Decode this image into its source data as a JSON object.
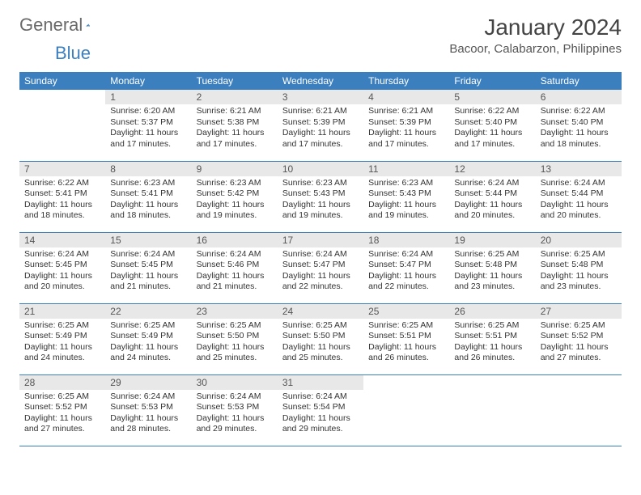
{
  "logo": {
    "general": "General",
    "blue": "Blue"
  },
  "title": "January 2024",
  "location": "Bacoor, Calabarzon, Philippines",
  "colors": {
    "header_bg": "#3b7fbf",
    "header_text": "#ffffff",
    "daynum_bg": "#e8e8e8",
    "border": "#3b7fbf",
    "text": "#333333",
    "logo_gray": "#6a6a6a",
    "logo_blue": "#3b7fbf"
  },
  "weekdays": [
    "Sunday",
    "Monday",
    "Tuesday",
    "Wednesday",
    "Thursday",
    "Friday",
    "Saturday"
  ],
  "weeks": [
    [
      {
        "n": "",
        "sunrise": "",
        "sunset": "",
        "daylight": ""
      },
      {
        "n": "1",
        "sunrise": "Sunrise: 6:20 AM",
        "sunset": "Sunset: 5:37 PM",
        "daylight": "Daylight: 11 hours and 17 minutes."
      },
      {
        "n": "2",
        "sunrise": "Sunrise: 6:21 AM",
        "sunset": "Sunset: 5:38 PM",
        "daylight": "Daylight: 11 hours and 17 minutes."
      },
      {
        "n": "3",
        "sunrise": "Sunrise: 6:21 AM",
        "sunset": "Sunset: 5:39 PM",
        "daylight": "Daylight: 11 hours and 17 minutes."
      },
      {
        "n": "4",
        "sunrise": "Sunrise: 6:21 AM",
        "sunset": "Sunset: 5:39 PM",
        "daylight": "Daylight: 11 hours and 17 minutes."
      },
      {
        "n": "5",
        "sunrise": "Sunrise: 6:22 AM",
        "sunset": "Sunset: 5:40 PM",
        "daylight": "Daylight: 11 hours and 17 minutes."
      },
      {
        "n": "6",
        "sunrise": "Sunrise: 6:22 AM",
        "sunset": "Sunset: 5:40 PM",
        "daylight": "Daylight: 11 hours and 18 minutes."
      }
    ],
    [
      {
        "n": "7",
        "sunrise": "Sunrise: 6:22 AM",
        "sunset": "Sunset: 5:41 PM",
        "daylight": "Daylight: 11 hours and 18 minutes."
      },
      {
        "n": "8",
        "sunrise": "Sunrise: 6:23 AM",
        "sunset": "Sunset: 5:41 PM",
        "daylight": "Daylight: 11 hours and 18 minutes."
      },
      {
        "n": "9",
        "sunrise": "Sunrise: 6:23 AM",
        "sunset": "Sunset: 5:42 PM",
        "daylight": "Daylight: 11 hours and 19 minutes."
      },
      {
        "n": "10",
        "sunrise": "Sunrise: 6:23 AM",
        "sunset": "Sunset: 5:43 PM",
        "daylight": "Daylight: 11 hours and 19 minutes."
      },
      {
        "n": "11",
        "sunrise": "Sunrise: 6:23 AM",
        "sunset": "Sunset: 5:43 PM",
        "daylight": "Daylight: 11 hours and 19 minutes."
      },
      {
        "n": "12",
        "sunrise": "Sunrise: 6:24 AM",
        "sunset": "Sunset: 5:44 PM",
        "daylight": "Daylight: 11 hours and 20 minutes."
      },
      {
        "n": "13",
        "sunrise": "Sunrise: 6:24 AM",
        "sunset": "Sunset: 5:44 PM",
        "daylight": "Daylight: 11 hours and 20 minutes."
      }
    ],
    [
      {
        "n": "14",
        "sunrise": "Sunrise: 6:24 AM",
        "sunset": "Sunset: 5:45 PM",
        "daylight": "Daylight: 11 hours and 20 minutes."
      },
      {
        "n": "15",
        "sunrise": "Sunrise: 6:24 AM",
        "sunset": "Sunset: 5:45 PM",
        "daylight": "Daylight: 11 hours and 21 minutes."
      },
      {
        "n": "16",
        "sunrise": "Sunrise: 6:24 AM",
        "sunset": "Sunset: 5:46 PM",
        "daylight": "Daylight: 11 hours and 21 minutes."
      },
      {
        "n": "17",
        "sunrise": "Sunrise: 6:24 AM",
        "sunset": "Sunset: 5:47 PM",
        "daylight": "Daylight: 11 hours and 22 minutes."
      },
      {
        "n": "18",
        "sunrise": "Sunrise: 6:24 AM",
        "sunset": "Sunset: 5:47 PM",
        "daylight": "Daylight: 11 hours and 22 minutes."
      },
      {
        "n": "19",
        "sunrise": "Sunrise: 6:25 AM",
        "sunset": "Sunset: 5:48 PM",
        "daylight": "Daylight: 11 hours and 23 minutes."
      },
      {
        "n": "20",
        "sunrise": "Sunrise: 6:25 AM",
        "sunset": "Sunset: 5:48 PM",
        "daylight": "Daylight: 11 hours and 23 minutes."
      }
    ],
    [
      {
        "n": "21",
        "sunrise": "Sunrise: 6:25 AM",
        "sunset": "Sunset: 5:49 PM",
        "daylight": "Daylight: 11 hours and 24 minutes."
      },
      {
        "n": "22",
        "sunrise": "Sunrise: 6:25 AM",
        "sunset": "Sunset: 5:49 PM",
        "daylight": "Daylight: 11 hours and 24 minutes."
      },
      {
        "n": "23",
        "sunrise": "Sunrise: 6:25 AM",
        "sunset": "Sunset: 5:50 PM",
        "daylight": "Daylight: 11 hours and 25 minutes."
      },
      {
        "n": "24",
        "sunrise": "Sunrise: 6:25 AM",
        "sunset": "Sunset: 5:50 PM",
        "daylight": "Daylight: 11 hours and 25 minutes."
      },
      {
        "n": "25",
        "sunrise": "Sunrise: 6:25 AM",
        "sunset": "Sunset: 5:51 PM",
        "daylight": "Daylight: 11 hours and 26 minutes."
      },
      {
        "n": "26",
        "sunrise": "Sunrise: 6:25 AM",
        "sunset": "Sunset: 5:51 PM",
        "daylight": "Daylight: 11 hours and 26 minutes."
      },
      {
        "n": "27",
        "sunrise": "Sunrise: 6:25 AM",
        "sunset": "Sunset: 5:52 PM",
        "daylight": "Daylight: 11 hours and 27 minutes."
      }
    ],
    [
      {
        "n": "28",
        "sunrise": "Sunrise: 6:25 AM",
        "sunset": "Sunset: 5:52 PM",
        "daylight": "Daylight: 11 hours and 27 minutes."
      },
      {
        "n": "29",
        "sunrise": "Sunrise: 6:24 AM",
        "sunset": "Sunset: 5:53 PM",
        "daylight": "Daylight: 11 hours and 28 minutes."
      },
      {
        "n": "30",
        "sunrise": "Sunrise: 6:24 AM",
        "sunset": "Sunset: 5:53 PM",
        "daylight": "Daylight: 11 hours and 29 minutes."
      },
      {
        "n": "31",
        "sunrise": "Sunrise: 6:24 AM",
        "sunset": "Sunset: 5:54 PM",
        "daylight": "Daylight: 11 hours and 29 minutes."
      },
      {
        "n": "",
        "sunrise": "",
        "sunset": "",
        "daylight": ""
      },
      {
        "n": "",
        "sunrise": "",
        "sunset": "",
        "daylight": ""
      },
      {
        "n": "",
        "sunrise": "",
        "sunset": "",
        "daylight": ""
      }
    ]
  ]
}
